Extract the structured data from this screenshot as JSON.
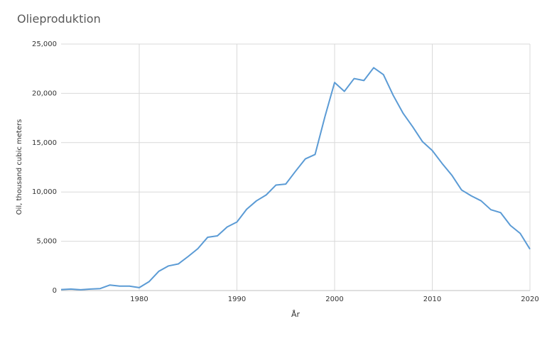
{
  "chart_data": {
    "type": "line",
    "title": "Olieproduktion",
    "x_label": "År",
    "y_label": "Oil, thousand cubic meters",
    "x": [
      1972,
      1973,
      1974,
      1975,
      1976,
      1977,
      1978,
      1979,
      1980,
      1981,
      1982,
      1983,
      1984,
      1985,
      1986,
      1987,
      1988,
      1989,
      1990,
      1991,
      1992,
      1993,
      1994,
      1995,
      1996,
      1997,
      1998,
      1999,
      2000,
      2001,
      2002,
      2003,
      2004,
      2005,
      2006,
      2007,
      2008,
      2009,
      2010,
      2011,
      2012,
      2013,
      2014,
      2015,
      2016,
      2017,
      2018,
      2019,
      2020
    ],
    "series": [
      {
        "name": "Oil",
        "color": "#5b9bd5",
        "values": [
          100,
          150,
          80,
          150,
          200,
          560,
          450,
          450,
          300,
          900,
          1950,
          2500,
          2700,
          3450,
          4250,
          5400,
          5550,
          6450,
          6950,
          8250,
          9100,
          9700,
          10700,
          10800,
          12100,
          13350,
          13800,
          17600,
          21100,
          20200,
          21500,
          21300,
          22600,
          21900,
          19800,
          18000,
          16600,
          15100,
          14200,
          12900,
          11700,
          10200,
          9600,
          9100,
          8200,
          7900,
          6600,
          5800,
          4200
        ]
      }
    ],
    "xlim": [
      1972,
      2020
    ],
    "xticks": [
      1980,
      1990,
      2000,
      2010,
      2020
    ],
    "ylim": [
      0,
      25000
    ],
    "yticks": [
      0,
      {
        "value": 5000,
        "label": "5,000"
      },
      {
        "value": 10000,
        "label": "10,000"
      },
      {
        "value": 15000,
        "label": "15,000"
      },
      {
        "value": 20000,
        "label": "20,000"
      },
      {
        "value": 25000,
        "label": "25,000"
      }
    ],
    "grid": true
  }
}
